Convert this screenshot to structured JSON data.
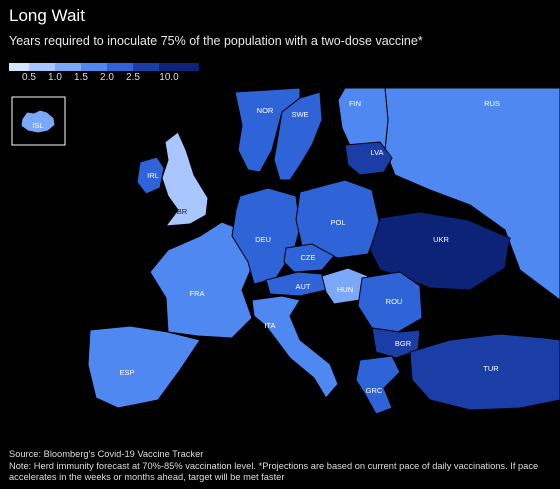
{
  "title": "Long Wait",
  "subtitle": "Years required to inoculate 75% of the population with a two-dose vaccine*",
  "legend": {
    "ticks": [
      "0.5",
      "1.0",
      "1.5",
      "2.0",
      "2.5",
      "10.0"
    ],
    "colors": [
      "#d6e4ff",
      "#a9c6ff",
      "#7ca8fa",
      "#4f88f0",
      "#2f63d8",
      "#1a3ea6",
      "#0c2378"
    ]
  },
  "colors": {
    "background": "#000000",
    "no_data": "#000000",
    "border": "#000000"
  },
  "countries": [
    {
      "code": "ISL",
      "level": 2
    },
    {
      "code": "NOR",
      "level": 4
    },
    {
      "code": "SWE",
      "level": 4
    },
    {
      "code": "FIN",
      "level": 3
    },
    {
      "code": "RUS",
      "level": 3
    },
    {
      "code": "LVA",
      "level": 5
    },
    {
      "code": "IRL",
      "level": 4
    },
    {
      "code": "GBR",
      "level": 1
    },
    {
      "code": "DEU",
      "level": 4
    },
    {
      "code": "POL",
      "level": 4
    },
    {
      "code": "UKR",
      "level": 6
    },
    {
      "code": "CZE",
      "level": 4
    },
    {
      "code": "FRA",
      "level": 3
    },
    {
      "code": "AUT",
      "level": 4
    },
    {
      "code": "HUN",
      "level": 2
    },
    {
      "code": "ROU",
      "level": 4
    },
    {
      "code": "ITA",
      "level": 3
    },
    {
      "code": "BGR",
      "level": 5
    },
    {
      "code": "ESP",
      "level": 3
    },
    {
      "code": "GRC",
      "level": 4
    },
    {
      "code": "TUR",
      "level": 5
    }
  ],
  "source": "Source: Bloomberg's Covid-19 Vaccine Tracker",
  "note": "Note: Herd immunity forecast at 70%-85% vaccination level. *Projections are based on current pace of daily vaccinations. If pace accelerates in the weeks or months ahead, target will be met faster"
}
